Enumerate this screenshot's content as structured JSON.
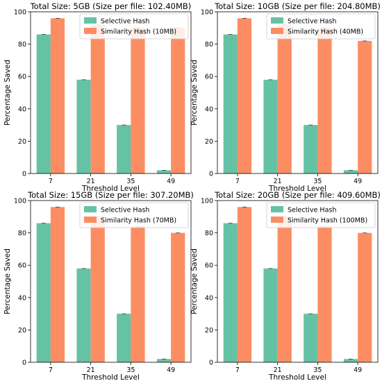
{
  "colors": {
    "selective": "#66c2a5",
    "similarity": "#fc8d62"
  },
  "chart_data": [
    {
      "type": "bar",
      "title": "Total Size: 5GB (Size per file: 102.40MB)",
      "xlabel": "Threshold Level",
      "ylabel": "Percentage Saved",
      "categories": [
        "7",
        "21",
        "35",
        "49"
      ],
      "ylim": [
        0,
        100
      ],
      "yticks": [
        0,
        20,
        40,
        60,
        80,
        100
      ],
      "legend": "top-right",
      "series": [
        {
          "name": "Selective Hash",
          "values": [
            86,
            58,
            30,
            2
          ]
        },
        {
          "name": "Similarity Hash (10MB)",
          "values": [
            96,
            92,
            90,
            90
          ]
        }
      ]
    },
    {
      "type": "bar",
      "title": "Total Size: 10GB (Size per file: 204.80MB)",
      "xlabel": "Threshold Level",
      "ylabel": "Percentage Saved",
      "categories": [
        "7",
        "21",
        "35",
        "49"
      ],
      "ylim": [
        0,
        100
      ],
      "yticks": [
        0,
        20,
        40,
        60,
        80,
        100
      ],
      "legend": "top-right",
      "series": [
        {
          "name": "Selective Hash",
          "values": [
            86,
            58,
            30,
            2
          ]
        },
        {
          "name": "Similarity Hash (40MB)",
          "values": [
            96,
            92,
            90,
            82
          ]
        }
      ]
    },
    {
      "type": "bar",
      "title": "Total Size: 15GB (Size per file: 307.20MB)",
      "xlabel": "Threshold Level",
      "ylabel": "Percentage Saved",
      "categories": [
        "7",
        "21",
        "35",
        "49"
      ],
      "ylim": [
        0,
        100
      ],
      "yticks": [
        0,
        20,
        40,
        60,
        80,
        100
      ],
      "legend": "top-right",
      "series": [
        {
          "name": "Selective Hash",
          "values": [
            86,
            58,
            30,
            2
          ]
        },
        {
          "name": "Similarity Hash (70MB)",
          "values": [
            96,
            90,
            84,
            80
          ]
        }
      ]
    },
    {
      "type": "bar",
      "title": "Total Size: 20GB (Size per file: 409.60MB)",
      "xlabel": "Threshold Level",
      "ylabel": "Percentage Saved",
      "categories": [
        "7",
        "21",
        "35",
        "49"
      ],
      "ylim": [
        0,
        100
      ],
      "yticks": [
        0,
        20,
        40,
        60,
        80,
        100
      ],
      "legend": "top-right",
      "series": [
        {
          "name": "Selective Hash",
          "values": [
            86,
            58,
            30,
            2
          ]
        },
        {
          "name": "Similarity Hash (100MB)",
          "values": [
            96,
            90,
            84,
            80
          ]
        }
      ]
    }
  ]
}
